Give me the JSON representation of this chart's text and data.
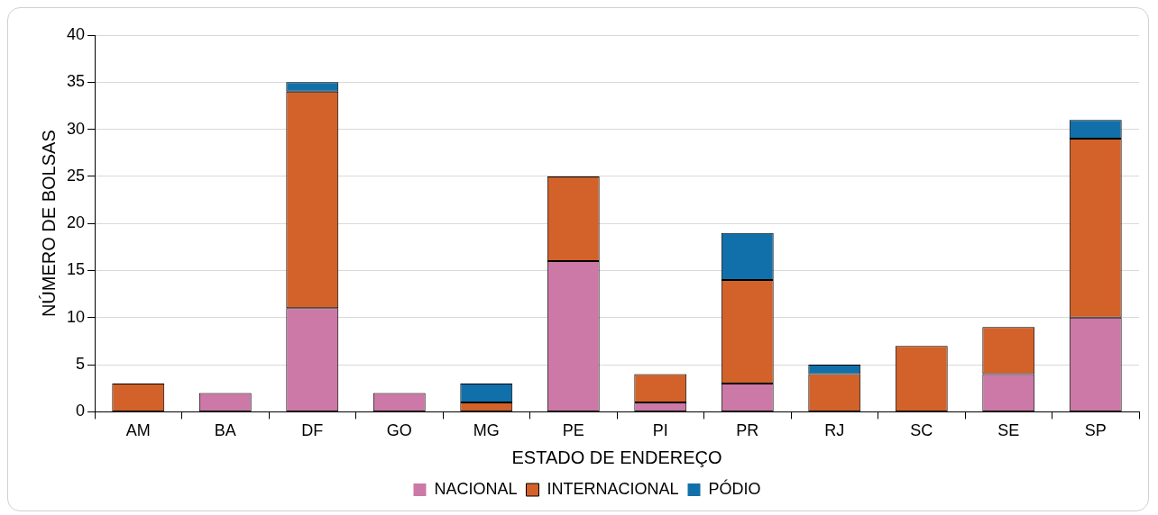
{
  "chart_data": {
    "type": "bar",
    "stacked": true,
    "xlabel": "ESTADO DE ENDEREÇO",
    "ylabel": "NÚMERO DE BOLSAS",
    "categories": [
      "AM",
      "BA",
      "DF",
      "GO",
      "MG",
      "PE",
      "PI",
      "PR",
      "RJ",
      "SC",
      "SE",
      "SP"
    ],
    "series": [
      {
        "name": "NACIONAL",
        "color": "#cc79a7",
        "values": [
          0,
          2,
          11,
          2,
          0,
          16,
          1,
          3,
          0,
          0,
          4,
          10
        ]
      },
      {
        "name": "INTERNACIONAL",
        "color": "#d2622a",
        "values": [
          3,
          0,
          23,
          0,
          1,
          9,
          3,
          11,
          4,
          7,
          5,
          19
        ]
      },
      {
        "name": "PÓDIO",
        "color": "#1170aa",
        "values": [
          0,
          0,
          1,
          0,
          2,
          0,
          0,
          5,
          1,
          0,
          0,
          2
        ]
      }
    ],
    "ylim": [
      0,
      40
    ],
    "yticks": [
      0,
      5,
      10,
      15,
      20,
      25,
      30,
      35,
      40
    ],
    "grid": "y",
    "legend": "bottom"
  }
}
